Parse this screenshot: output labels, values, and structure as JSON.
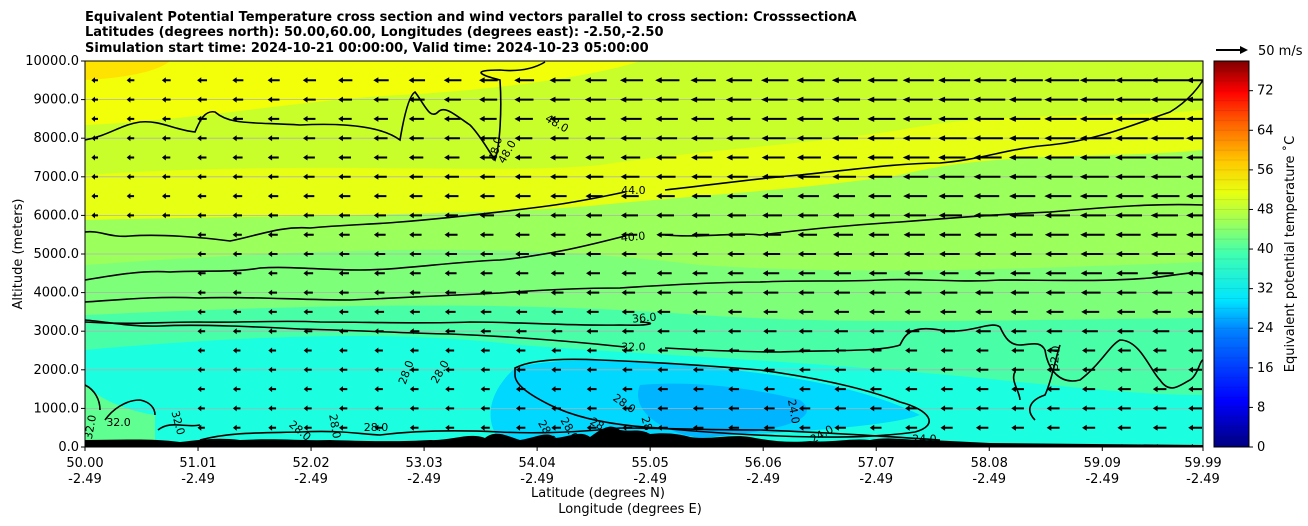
{
  "chart_data": {
    "type": "heatmap",
    "title_lines": [
      "Equivalent Potential Temperature cross section and wind vectors parallel to cross section: CrosssectionA",
      "Latitudes (degrees north): 50.00,60.00, Longitudes (degrees east): -2.50,-2.50",
      "Simulation start time: 2024-10-21 00:00:00, Valid time: 2024-10-23 05:00:00"
    ],
    "xlabel_lat": "Latitude (degrees N)",
    "xlabel_lon": "Longitude (degrees E)",
    "ylabel": "Altitude (meters)",
    "colorbar_label": "Equivalent potential temperature ˚C",
    "quiver_key": "50 m/s",
    "xlim": [
      50.0,
      59.99
    ],
    "ylim": [
      0,
      10000
    ],
    "x_ticks": [
      {
        "lat": "50.00",
        "lon": "-2.49"
      },
      {
        "lat": "51.01",
        "lon": "-2.49"
      },
      {
        "lat": "52.02",
        "lon": "-2.49"
      },
      {
        "lat": "53.03",
        "lon": "-2.49"
      },
      {
        "lat": "54.04",
        "lon": "-2.49"
      },
      {
        "lat": "55.05",
        "lon": "-2.49"
      },
      {
        "lat": "56.06",
        "lon": "-2.49"
      },
      {
        "lat": "57.07",
        "lon": "-2.49"
      },
      {
        "lat": "58.08",
        "lon": "-2.49"
      },
      {
        "lat": "59.09",
        "lon": "-2.49"
      },
      {
        "lat": "59.99",
        "lon": "-2.49"
      }
    ],
    "y_ticks": [
      "0.0",
      "1000.0",
      "2000.0",
      "3000.0",
      "4000.0",
      "5000.0",
      "6000.0",
      "7000.0",
      "8000.0",
      "9000.0",
      "10000.0"
    ],
    "colorbar_ticks": [
      "0",
      "8",
      "16",
      "24",
      "32",
      "40",
      "48",
      "56",
      "64",
      "72"
    ],
    "colorbar_range": [
      0,
      78
    ],
    "contour_levels": [
      24,
      28,
      32,
      36,
      40,
      44,
      48
    ],
    "contour_labels": [
      {
        "text": "32.0",
        "lat": 50.08,
        "alt": 500,
        "angle": -80
      },
      {
        "text": "32.0",
        "lat": 50.3,
        "alt": 550,
        "angle": 0
      },
      {
        "text": "32.0",
        "lat": 50.8,
        "alt": 600,
        "angle": 75
      },
      {
        "text": "28.0",
        "lat": 51.9,
        "alt": 350,
        "angle": 40
      },
      {
        "text": "28.0",
        "lat": 52.2,
        "alt": 520,
        "angle": 80
      },
      {
        "text": "28.0",
        "lat": 52.6,
        "alt": 420,
        "angle": 0
      },
      {
        "text": "28.0",
        "lat": 52.9,
        "alt": 1900,
        "angle": -70
      },
      {
        "text": "28.0",
        "lat": 53.2,
        "alt": 1900,
        "angle": -60
      },
      {
        "text": "28.0",
        "lat": 54.1,
        "alt": 350,
        "angle": 60
      },
      {
        "text": "28.0",
        "lat": 54.3,
        "alt": 420,
        "angle": 60
      },
      {
        "text": "28.0",
        "lat": 54.6,
        "alt": 450,
        "angle": 30
      },
      {
        "text": "28.0",
        "lat": 54.8,
        "alt": 1050,
        "angle": 35
      },
      {
        "text": "28.0",
        "lat": 55.0,
        "alt": 450,
        "angle": 75
      },
      {
        "text": "24.0",
        "lat": 56.3,
        "alt": 900,
        "angle": 80
      },
      {
        "text": "24.0",
        "lat": 56.6,
        "alt": 250,
        "angle": -30
      },
      {
        "text": "24.0",
        "lat": 57.5,
        "alt": 120,
        "angle": 0
      },
      {
        "text": "32.0",
        "lat": 58.7,
        "alt": 2300,
        "angle": -85
      },
      {
        "text": "36.0",
        "lat": 55.0,
        "alt": 3250,
        "angle": -5
      },
      {
        "text": "32.0",
        "lat": 54.9,
        "alt": 2500,
        "angle": 0
      },
      {
        "text": "40.0",
        "lat": 54.9,
        "alt": 5350,
        "angle": -5
      },
      {
        "text": "44.0",
        "lat": 54.9,
        "alt": 6550,
        "angle": 0
      },
      {
        "text": "48.0",
        "lat": 53.7,
        "alt": 7700,
        "angle": -75
      },
      {
        "text": "48.0",
        "lat": 53.8,
        "alt": 7600,
        "angle": -60
      },
      {
        "text": "48.0",
        "lat": 54.2,
        "alt": 8300,
        "angle": 30
      }
    ]
  }
}
